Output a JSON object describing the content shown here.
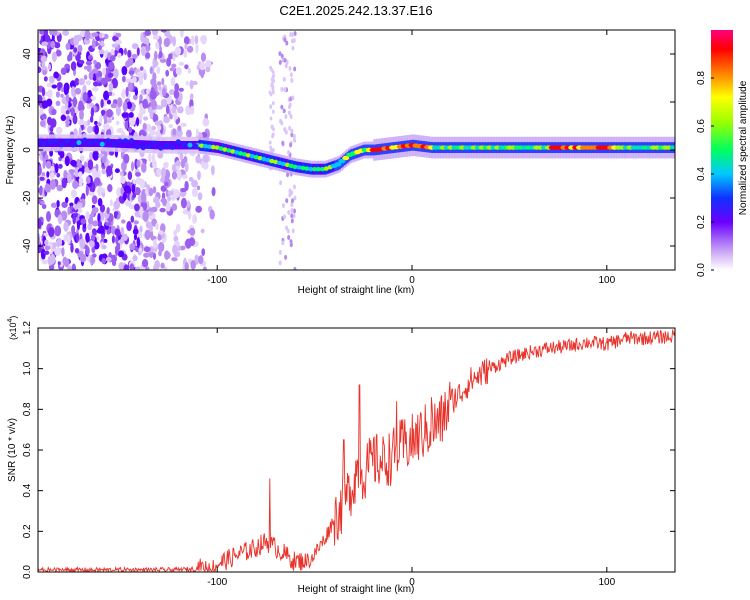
{
  "title": "C2E1.2025.242.13.37.E16",
  "chart_data": [
    {
      "type": "heatmap",
      "xlabel": "Height of straight line (km)",
      "ylabel": "Frequency (Hz)",
      "xlim": [
        -192,
        135
      ],
      "ylim": [
        -50,
        50
      ],
      "xticks": [
        -100,
        0,
        100
      ],
      "yticks": [
        -40,
        -20,
        0,
        20,
        40
      ],
      "colorbar": {
        "label": "Normalized spectral amplitude",
        "ticks": [
          "0.0",
          "0.2",
          "0.4",
          "0.6",
          "0.8"
        ],
        "range": [
          0,
          1
        ]
      },
      "ridge": {
        "x": [
          -192,
          -160,
          -130,
          -110,
          -100,
          -90,
          -80,
          -70,
          -60,
          -52,
          -45,
          -38,
          -32,
          -25,
          -20,
          -10,
          0,
          10,
          20,
          40,
          60,
          80,
          100,
          120,
          135
        ],
        "frequency": [
          3,
          3,
          2,
          2,
          1,
          -1,
          -3,
          -5,
          -7,
          -8,
          -8,
          -6,
          -2,
          0,
          0,
          1,
          2,
          1,
          1,
          1,
          1,
          1,
          1,
          1,
          1
        ]
      }
    },
    {
      "type": "line",
      "xlabel": "Height of straight line (km)",
      "ylabel": "SNR (10 * v/v)",
      "scale_label": "(x10",
      "scale_exp": "4",
      "xlim": [
        -192,
        135
      ],
      "ylim": [
        0,
        1.2
      ],
      "xticks": [
        -100,
        0,
        100
      ],
      "yticks": [
        "0.0",
        "0.2",
        "0.4",
        "0.6",
        "0.8",
        "1.0",
        "1.2"
      ],
      "color": "#e8322a",
      "x": [
        -192,
        -120,
        -105,
        -95,
        -88,
        -80,
        -75,
        -70,
        -60,
        -52,
        -45,
        -40,
        -35,
        -30,
        -28,
        -25,
        -20,
        -15,
        -10,
        -5,
        0,
        5,
        10,
        15,
        20,
        25,
        30,
        40,
        50,
        60,
        70,
        80,
        90,
        100,
        110,
        120,
        135
      ],
      "y": [
        0.01,
        0.01,
        0.02,
        0.06,
        0.09,
        0.12,
        0.15,
        0.12,
        0.05,
        0.06,
        0.16,
        0.26,
        0.34,
        0.44,
        0.52,
        0.48,
        0.55,
        0.54,
        0.57,
        0.62,
        0.64,
        0.68,
        0.71,
        0.74,
        0.84,
        0.88,
        0.94,
        1.0,
        1.05,
        1.08,
        1.1,
        1.11,
        1.13,
        1.12,
        1.15,
        1.15,
        1.16
      ],
      "spikes": [
        {
          "x": -73,
          "y": 0.46
        },
        {
          "x": -35,
          "y": 0.65
        },
        {
          "x": -27,
          "y": 0.92
        },
        {
          "x": -8,
          "y": 0.84
        },
        {
          "x": 10,
          "y": 0.86
        }
      ]
    }
  ]
}
